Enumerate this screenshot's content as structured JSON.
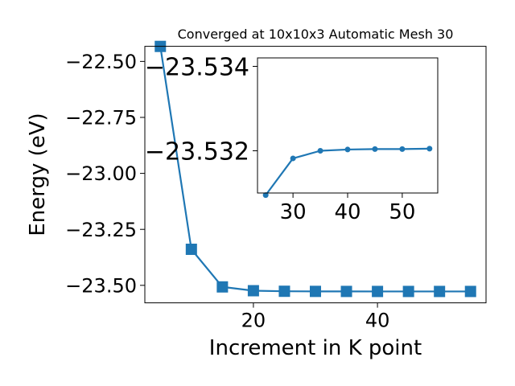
{
  "chart_data": [
    {
      "type": "line",
      "title": "Converged at 10x10x3 Automatic Mesh 30",
      "xlabel": "Increment in K point",
      "ylabel": "Energy (eV)",
      "xlim": [
        2.5,
        57.5
      ],
      "ylim": [
        -23.5782,
        -22.4326
      ],
      "x_ticks": [
        20,
        40
      ],
      "y_ticks": [
        -22.5,
        -22.75,
        -23.0,
        -23.25,
        -23.5
      ],
      "x_tick_labels": [
        "20",
        "40"
      ],
      "y_tick_labels": [
        "−22.50",
        "−22.75",
        "−23.00",
        "−23.25",
        "−23.50"
      ],
      "grid": false,
      "series": [
        {
          "marker": "square",
          "color": "#1f77b4",
          "x": [
            5,
            10,
            15,
            20,
            25,
            30,
            35,
            40,
            45,
            50,
            55
          ],
          "y": [
            -22.433,
            -23.339,
            -23.507,
            -23.524,
            -23.5265,
            -23.527,
            -23.5272,
            -23.5273,
            -23.5273,
            -23.5273,
            -23.5273
          ]
        }
      ]
    },
    {
      "type": "line",
      "title": "",
      "xlabel": "",
      "ylabel": "",
      "xlim": [
        23.5,
        56.5
      ],
      "ylim": [
        -23.531,
        -23.5342
      ],
      "inverted_y": true,
      "x_ticks": [
        30,
        40,
        50
      ],
      "y_ticks": [
        -23.532,
        -23.534
      ],
      "x_tick_labels": [
        "30",
        "40",
        "50"
      ],
      "y_tick_labels": [
        "−23.532",
        "−23.534"
      ],
      "grid": false,
      "series": [
        {
          "marker": "circle",
          "color": "#1f77b4",
          "x": [
            25,
            30,
            35,
            40,
            45,
            50,
            55
          ],
          "y": [
            -23.53095,
            -23.53182,
            -23.532,
            -23.53203,
            -23.53204,
            -23.53204,
            -23.53205
          ]
        }
      ]
    }
  ]
}
